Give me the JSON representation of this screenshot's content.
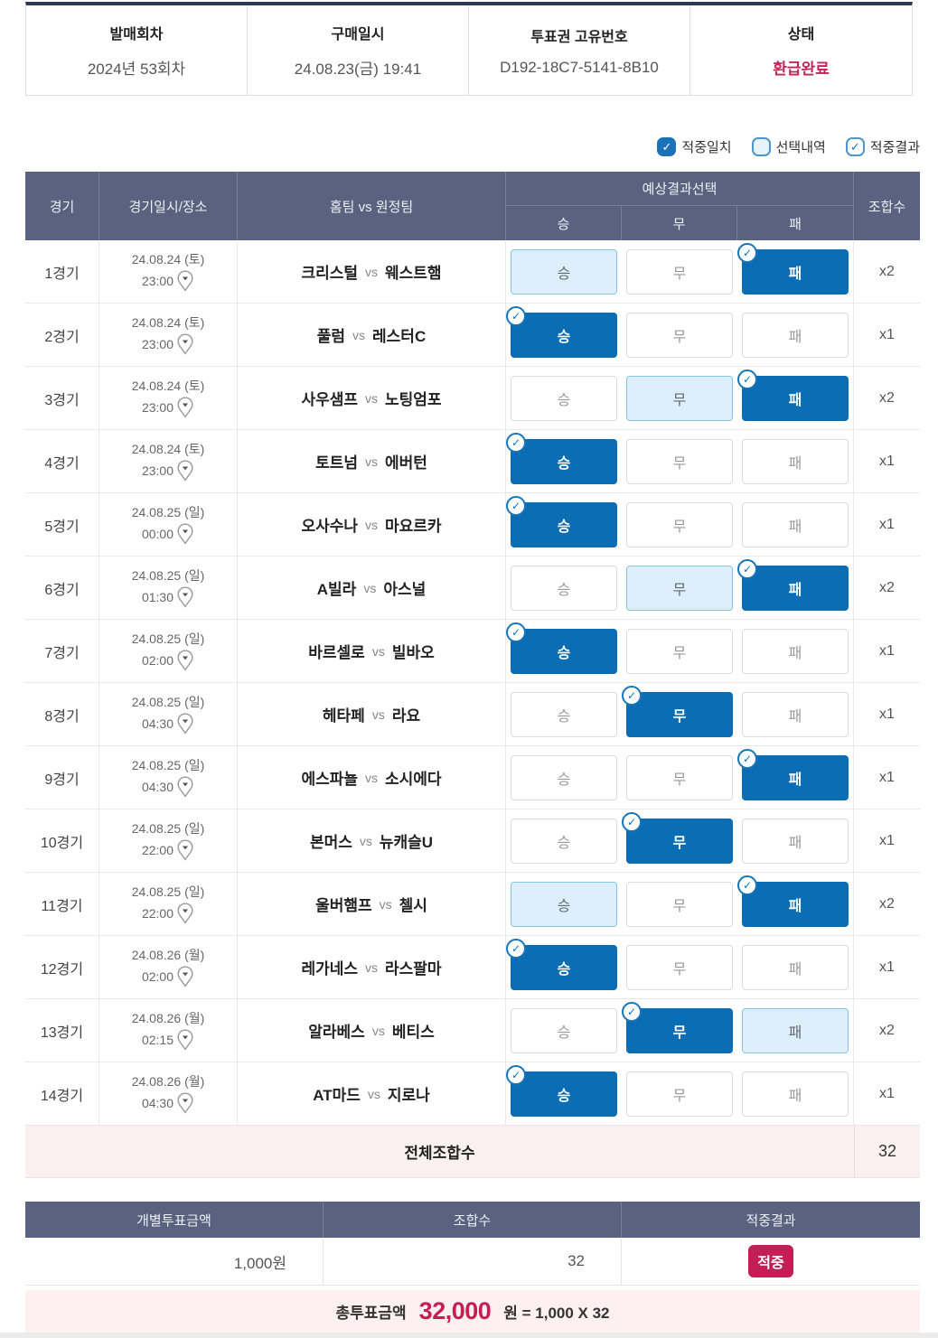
{
  "info": {
    "columns": [
      {
        "label": "발매회차",
        "value": "2024년 53회차"
      },
      {
        "label": "구매일시",
        "value": "24.08.23(금) 19:41"
      },
      {
        "label": "투표권 고유번호",
        "value": "D192-18C7-5141-8B10"
      },
      {
        "label": "상태",
        "value": "환급완료"
      }
    ]
  },
  "legend": {
    "items": [
      {
        "label": "적중일치"
      },
      {
        "label": "선택내역"
      },
      {
        "label": "적중결과"
      }
    ]
  },
  "icons": {
    "check": "✓"
  },
  "table": {
    "headers": {
      "game": "경기",
      "datetime": "경기일시/장소",
      "teams": "홈팀 vs 원정팀",
      "pick_group": "예상결과선택",
      "win": "승",
      "draw": "무",
      "lose": "패",
      "combo": "조합수"
    },
    "vs_label": "vs",
    "rows": [
      {
        "game": "1경기",
        "date": "24.08.24 (토)",
        "time": "23:00",
        "home": "크리스털",
        "away": "웨스트햄",
        "picks": {
          "win": "pick",
          "draw": "none",
          "lose": "hit"
        },
        "combo": "x2"
      },
      {
        "game": "2경기",
        "date": "24.08.24 (토)",
        "time": "23:00",
        "home": "풀럼",
        "away": "레스터C",
        "picks": {
          "win": "hit",
          "draw": "none",
          "lose": "none"
        },
        "combo": "x1"
      },
      {
        "game": "3경기",
        "date": "24.08.24 (토)",
        "time": "23:00",
        "home": "사우샘프",
        "away": "노팅엄포",
        "picks": {
          "win": "none",
          "draw": "pick",
          "lose": "hit"
        },
        "combo": "x2"
      },
      {
        "game": "4경기",
        "date": "24.08.24 (토)",
        "time": "23:00",
        "home": "토트넘",
        "away": "에버턴",
        "picks": {
          "win": "hit",
          "draw": "none",
          "lose": "none"
        },
        "combo": "x1"
      },
      {
        "game": "5경기",
        "date": "24.08.25 (일)",
        "time": "00:00",
        "home": "오사수나",
        "away": "마요르카",
        "picks": {
          "win": "hit",
          "draw": "none",
          "lose": "none"
        },
        "combo": "x1"
      },
      {
        "game": "6경기",
        "date": "24.08.25 (일)",
        "time": "01:30",
        "home": "A빌라",
        "away": "아스널",
        "picks": {
          "win": "none",
          "draw": "pick",
          "lose": "hit"
        },
        "combo": "x2"
      },
      {
        "game": "7경기",
        "date": "24.08.25 (일)",
        "time": "02:00",
        "home": "바르셀로",
        "away": "빌바오",
        "picks": {
          "win": "hit",
          "draw": "none",
          "lose": "none"
        },
        "combo": "x1"
      },
      {
        "game": "8경기",
        "date": "24.08.25 (일)",
        "time": "04:30",
        "home": "헤타페",
        "away": "라요",
        "picks": {
          "win": "none",
          "draw": "hit",
          "lose": "none"
        },
        "combo": "x1"
      },
      {
        "game": "9경기",
        "date": "24.08.25 (일)",
        "time": "04:30",
        "home": "에스파뇰",
        "away": "소시에다",
        "picks": {
          "win": "none",
          "draw": "none",
          "lose": "hit"
        },
        "combo": "x1"
      },
      {
        "game": "10경기",
        "date": "24.08.25 (일)",
        "time": "22:00",
        "home": "본머스",
        "away": "뉴캐슬U",
        "picks": {
          "win": "none",
          "draw": "hit",
          "lose": "none"
        },
        "combo": "x1"
      },
      {
        "game": "11경기",
        "date": "24.08.25 (일)",
        "time": "22:00",
        "home": "울버햄프",
        "away": "첼시",
        "picks": {
          "win": "pick",
          "draw": "none",
          "lose": "hit"
        },
        "combo": "x2"
      },
      {
        "game": "12경기",
        "date": "24.08.26 (월)",
        "time": "02:00",
        "home": "레가네스",
        "away": "라스팔마",
        "picks": {
          "win": "hit",
          "draw": "none",
          "lose": "none"
        },
        "combo": "x1"
      },
      {
        "game": "13경기",
        "date": "24.08.26 (월)",
        "time": "02:15",
        "home": "알라베스",
        "away": "베티스",
        "picks": {
          "win": "none",
          "draw": "hit",
          "lose": "pick"
        },
        "combo": "x2"
      },
      {
        "game": "14경기",
        "date": "24.08.26 (월)",
        "time": "04:30",
        "home": "AT마드",
        "away": "지로나",
        "picks": {
          "win": "hit",
          "draw": "none",
          "lose": "none"
        },
        "combo": "x1"
      }
    ],
    "total_label": "전체조합수",
    "total_value": "32"
  },
  "summary": {
    "headers": [
      "개별투표금액",
      "조합수",
      "적중결과"
    ],
    "unit_amount": "1,000원",
    "combo_count": "32",
    "result_badge": "적중"
  },
  "grand_total": {
    "label": "총투표금액",
    "amount": "32,000",
    "suffix": "원 = 1,000 X 32"
  },
  "colors": {
    "accent_blue": "#0b6db4",
    "light_blue": "#ddeffa",
    "header_slate": "#59637f",
    "status_crimson": "#c41e56",
    "pink_row": "#fbf0f1"
  }
}
